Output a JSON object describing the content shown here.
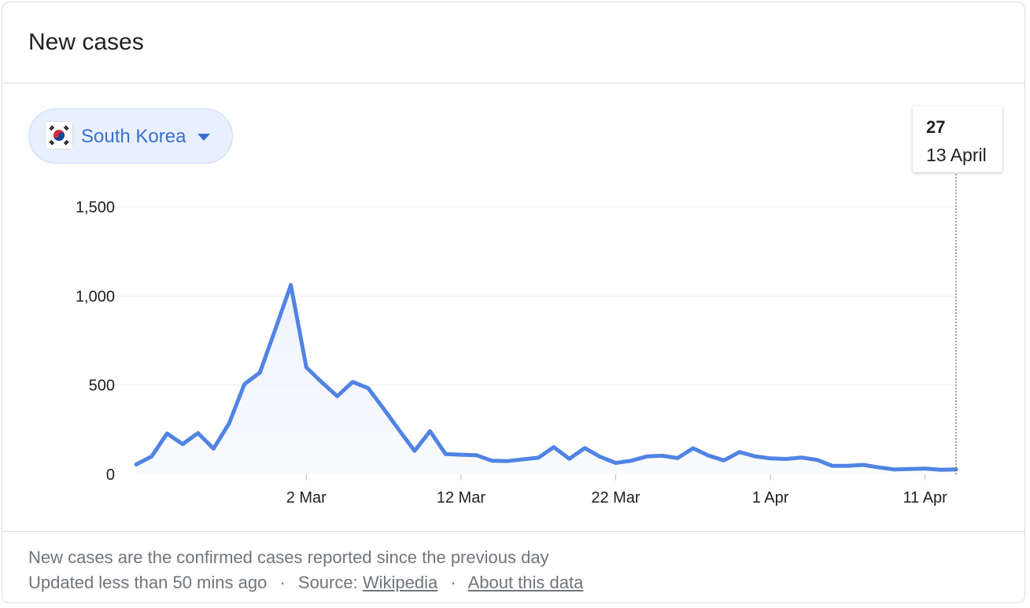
{
  "card": {
    "title": "New cases"
  },
  "region_selector": {
    "label": "South Korea",
    "flag_icon": "south-korea-flag-icon",
    "caret_icon": "caret-down-icon",
    "accent_color": "#3a6fd0"
  },
  "tooltip": {
    "value": "27",
    "date": "13 April"
  },
  "footer": {
    "note": "New cases are the confirmed cases reported since the previous day",
    "updated": "Updated less than 50 mins ago",
    "separator": "·",
    "source_prefix": "Source:",
    "source_link": "Wikipedia",
    "about_link": "About this data"
  },
  "chart_data": {
    "type": "area",
    "title": "",
    "xlabel": "",
    "ylabel": "",
    "x_start": "2020-02-20",
    "x_end": "2020-04-13",
    "x_tick_labels": [
      "2 Mar",
      "12 Mar",
      "22 Mar",
      "1 Apr",
      "11 Apr"
    ],
    "x_tick_dates": [
      "2020-03-02",
      "2020-03-12",
      "2020-03-22",
      "2020-04-01",
      "2020-04-11"
    ],
    "y_tick_labels": [
      "0",
      "500",
      "1,000",
      "1,500"
    ],
    "y_tick_values": [
      0,
      500,
      1000,
      1500
    ],
    "ylim": [
      0,
      1500
    ],
    "grid": true,
    "line_color": "#5083e3",
    "fill_color": "#eef3fc",
    "highlight": {
      "date": "2020-04-13",
      "value": 27
    },
    "series": [
      {
        "dates": [
          "2020-02-20",
          "2020-02-21",
          "2020-02-22",
          "2020-02-23",
          "2020-02-24",
          "2020-02-25",
          "2020-02-26",
          "2020-02-27",
          "2020-02-28",
          "2020-02-29",
          "2020-03-01",
          "2020-03-02",
          "2020-03-03",
          "2020-03-04",
          "2020-03-05",
          "2020-03-06",
          "2020-03-07",
          "2020-03-08",
          "2020-03-09",
          "2020-03-10",
          "2020-03-11",
          "2020-03-12",
          "2020-03-13",
          "2020-03-14",
          "2020-03-15",
          "2020-03-16",
          "2020-03-17",
          "2020-03-18",
          "2020-03-19",
          "2020-03-20",
          "2020-03-21",
          "2020-03-22",
          "2020-03-23",
          "2020-03-24",
          "2020-03-25",
          "2020-03-26",
          "2020-03-27",
          "2020-03-28",
          "2020-03-29",
          "2020-03-30",
          "2020-03-31",
          "2020-04-01",
          "2020-04-02",
          "2020-04-03",
          "2020-04-04",
          "2020-04-05",
          "2020-04-06",
          "2020-04-07",
          "2020-04-08",
          "2020-04-09",
          "2020-04-10",
          "2020-04-11",
          "2020-04-12",
          "2020-04-13"
        ],
        "values": [
          55,
          100,
          229,
          169,
          231,
          144,
          284,
          505,
          571,
          813,
          1062,
          600,
          516,
          438,
          518,
          483,
          367,
          248,
          131,
          242,
          114,
          110,
          107,
          76,
          74,
          84,
          93,
          152,
          87,
          147,
          98,
          64,
          76,
          100,
          104,
          91,
          146,
          105,
          78,
          125,
          101,
          89,
          86,
          94,
          81,
          47,
          47,
          53,
          39,
          27,
          30,
          32,
          25,
          27
        ]
      }
    ]
  }
}
